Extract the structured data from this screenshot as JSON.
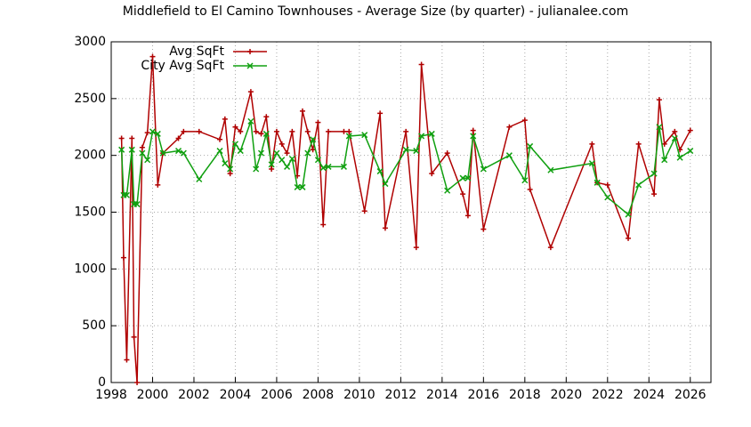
{
  "chart_data": {
    "type": "line",
    "title": "Middlefield to El Camino Townhouses - Average Size (by quarter) - julianalee.com",
    "x": [
      1998.5,
      1998.6,
      1998.75,
      1999.0,
      1999.1,
      1999.25,
      1999.5,
      1999.75,
      2000.0,
      2000.25,
      2000.5,
      2001.25,
      2001.5,
      2002.25,
      2003.25,
      2003.5,
      2003.75,
      2004.0,
      2004.25,
      2004.75,
      2005.0,
      2005.25,
      2005.5,
      2005.75,
      2006.0,
      2006.25,
      2006.5,
      2006.75,
      2007.0,
      2007.25,
      2007.5,
      2007.75,
      2008.0,
      2008.25,
      2008.5,
      2009.25,
      2009.5,
      2010.25,
      2011.0,
      2011.25,
      2012.25,
      2012.75,
      2013.0,
      2013.5,
      2014.25,
      2015.0,
      2015.25,
      2015.5,
      2016.0,
      2017.25,
      2018.0,
      2018.25,
      2019.25,
      2021.25,
      2021.5,
      2022.0,
      2023.0,
      2023.5,
      2024.25,
      2024.5,
      2024.75,
      2025.25,
      2025.5,
      2026.0
    ],
    "series": [
      {
        "name": "Avg SqFt",
        "color": "#b00000",
        "marker": "+",
        "values": [
          2150,
          1100,
          200,
          2150,
          400,
          0,
          2070,
          2200,
          2870,
          1740,
          2020,
          2150,
          2210,
          2210,
          2140,
          2320,
          1840,
          2250,
          2210,
          2560,
          2210,
          2190,
          2340,
          1880,
          2210,
          2100,
          2020,
          2210,
          1820,
          2390,
          2210,
          2050,
          2290,
          1390,
          2210,
          2210,
          2210,
          1510,
          2370,
          1360,
          2210,
          1190,
          2800,
          1840,
          2020,
          1660,
          1470,
          2220,
          1350,
          2250,
          2310,
          1700,
          1190,
          2100,
          1760,
          1740,
          1270,
          2100,
          1660,
          2490,
          2100,
          2210,
          2050,
          2220
        ]
      },
      {
        "name": "City Avg SqFt",
        "color": "#10a010",
        "marker": "x",
        "values": [
          2050,
          1650,
          1650,
          2050,
          1570,
          1570,
          2020,
          1960,
          2210,
          2190,
          2020,
          2040,
          2020,
          1790,
          2040,
          1930,
          1880,
          2100,
          2040,
          2300,
          1880,
          2020,
          2190,
          1920,
          2020,
          1960,
          1900,
          1970,
          1720,
          1720,
          2020,
          2140,
          1960,
          1890,
          1900,
          1900,
          2170,
          2180,
          1860,
          1750,
          2050,
          2040,
          2170,
          2190,
          1690,
          1800,
          1800,
          2170,
          1880,
          2000,
          1780,
          2080,
          1870,
          1930,
          1760,
          1630,
          1480,
          1740,
          1840,
          2250,
          1960,
          2150,
          1980,
          2040
        ]
      }
    ],
    "xlim": [
      1998,
      2027
    ],
    "xticks": [
      1998,
      2000,
      2002,
      2004,
      2006,
      2008,
      2010,
      2012,
      2014,
      2016,
      2018,
      2020,
      2022,
      2024,
      2026
    ],
    "ylim": [
      0,
      3000
    ],
    "yticks": [
      0,
      500,
      1000,
      1500,
      2000,
      2500,
      3000
    ],
    "grid": true,
    "legend": "top-left"
  }
}
